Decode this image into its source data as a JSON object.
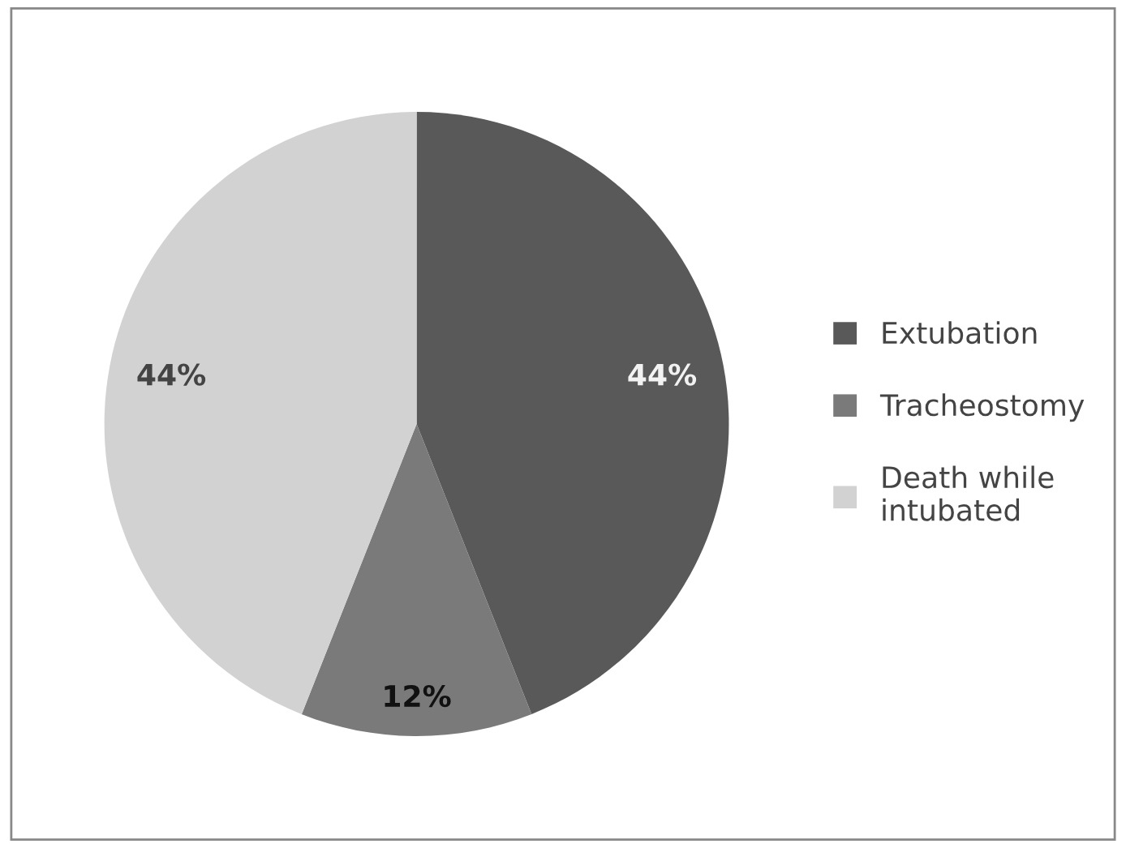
{
  "chart_data": {
    "type": "pie",
    "categories": [
      "Extubation",
      "Tracheostomy",
      "Death while\nintubated"
    ],
    "values": [
      44,
      12,
      44
    ],
    "colors": [
      "#595959",
      "#7a7a7a",
      "#d2d2d2"
    ],
    "data_labels": true,
    "value_labels": [
      "44%",
      "12%",
      "44%"
    ],
    "legend": "right"
  }
}
